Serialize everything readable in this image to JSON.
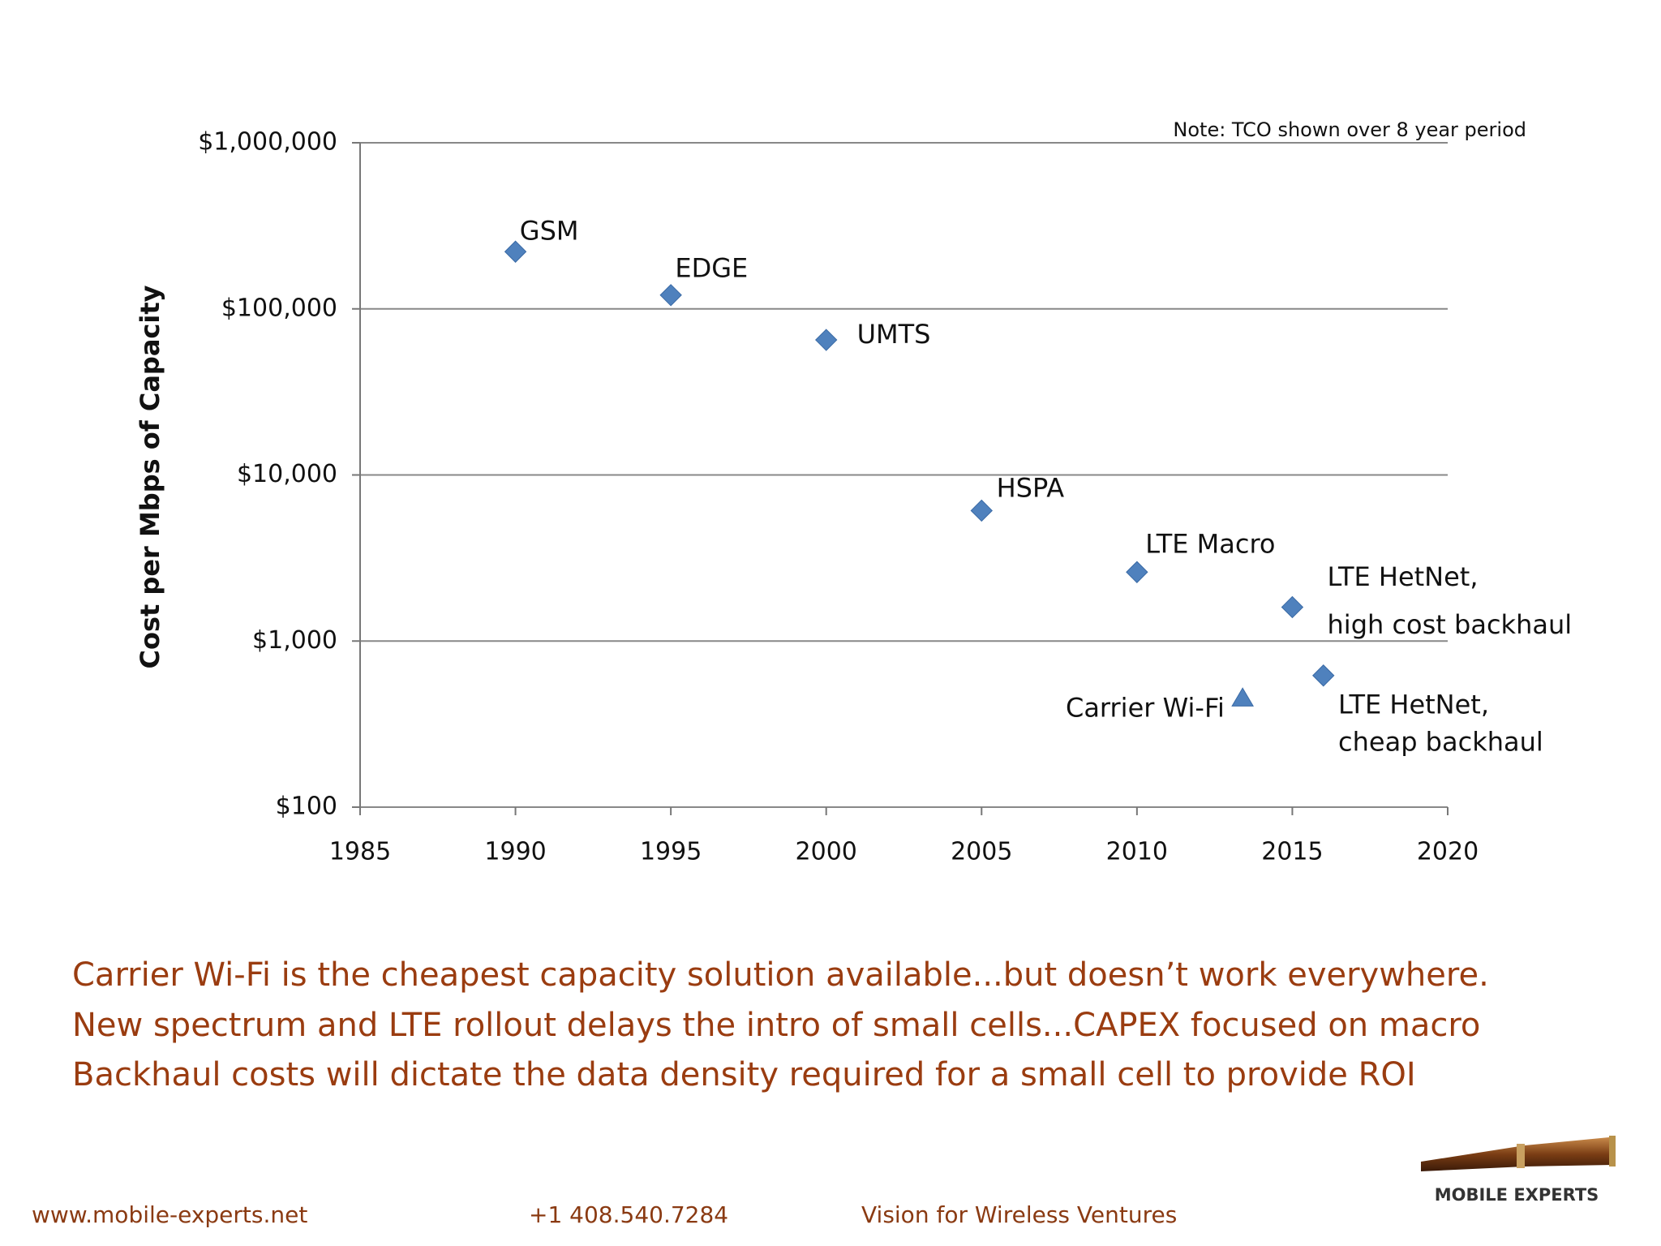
{
  "chart_data": {
    "type": "scatter",
    "y_axis_label": "Cost per Mbps of Capacity",
    "note": "Note:  TCO shown over 8 year period",
    "xlim": [
      1985,
      2020
    ],
    "xticks": [
      1985,
      1990,
      1995,
      2000,
      2005,
      2010,
      2015,
      2020
    ],
    "ylim": [
      100,
      1000000
    ],
    "y_log_scale": true,
    "grid": true,
    "color": "#4f81bd",
    "yticks": [
      {
        "value": 100,
        "label": "$100"
      },
      {
        "value": 1000,
        "label": "$1,000"
      },
      {
        "value": 10000,
        "label": "$10,000"
      },
      {
        "value": 100000,
        "label": "$100,000"
      },
      {
        "value": 1000000,
        "label": "$1,000,000"
      }
    ],
    "points": [
      {
        "label": [
          "GSM"
        ],
        "x": 1990,
        "y": 221000,
        "marker": "diamond"
      },
      {
        "label": [
          "EDGE"
        ],
        "x": 1995,
        "y": 121000,
        "marker": "diamond"
      },
      {
        "label": [
          "UMTS"
        ],
        "x": 2000,
        "y": 65000,
        "marker": "diamond"
      },
      {
        "label": [
          "HSPA"
        ],
        "x": 2005,
        "y": 6100,
        "marker": "diamond"
      },
      {
        "label": [
          "LTE Macro"
        ],
        "x": 2010,
        "y": 2600,
        "marker": "diamond"
      },
      {
        "label": [
          "LTE HetNet,",
          "high cost backhaul"
        ],
        "x": 2015,
        "y": 1600,
        "marker": "diamond"
      },
      {
        "label": [
          "LTE HetNet,",
          "cheap backhaul"
        ],
        "x": 2016,
        "y": 620,
        "marker": "diamond"
      },
      {
        "label": [
          "Carrier Wi-Fi"
        ],
        "x": 2013.4,
        "y": 450,
        "marker": "triangle"
      }
    ]
  },
  "bullets": [
    "Carrier Wi-Fi is the cheapest capacity solution available...but doesn’t work everywhere.",
    "New spectrum and LTE rollout delays the intro of small cells...CAPEX focused on macro",
    "Backhaul costs will dictate the data density required for a small cell to provide ROI"
  ],
  "footer": {
    "website": "www.mobile-experts.net",
    "phone": "+1 408.540.7284",
    "tagline": "Vision for Wireless Ventures",
    "logo": "MOBILE EXPERTS"
  }
}
